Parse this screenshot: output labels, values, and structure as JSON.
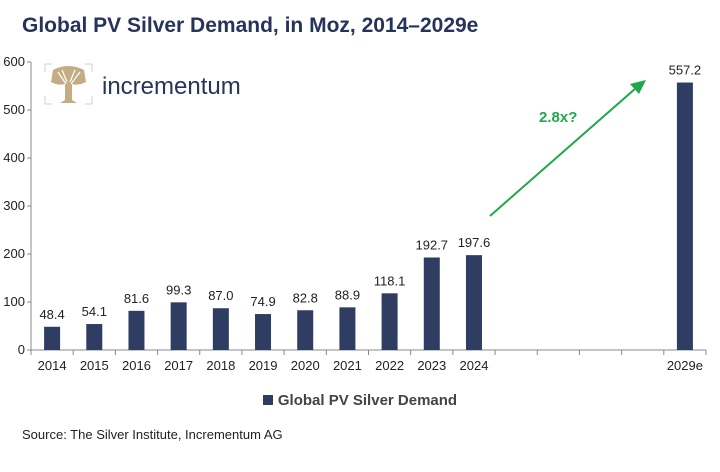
{
  "chart_data": {
    "type": "bar",
    "title": "Global PV Silver Demand, in Moz, 2014–2029e",
    "xlabel": "",
    "ylabel": "",
    "ylim": [
      0,
      600
    ],
    "yticks": [
      0,
      100,
      200,
      300,
      400,
      500,
      600
    ],
    "categories": [
      "2014",
      "2015",
      "2016",
      "2017",
      "2018",
      "2019",
      "2020",
      "2021",
      "2022",
      "2023",
      "2024",
      "2029e"
    ],
    "series": [
      {
        "name": "Global PV Silver Demand",
        "values": [
          48.4,
          54.1,
          81.6,
          99.3,
          87.0,
          74.9,
          82.8,
          88.9,
          118.1,
          192.7,
          197.6,
          557.2
        ],
        "labels": [
          "48.4",
          "54.1",
          "81.6",
          "99.3",
          "87.0",
          "74.9",
          "82.8",
          "88.9",
          "118.1",
          "192.7",
          "197.6",
          "557.2"
        ]
      }
    ],
    "grid": false,
    "legend_position": "bottom",
    "bar_color": "#2f3d63",
    "annotation": {
      "text": "2.8x?",
      "color": "#1fa84a"
    }
  },
  "logo": {
    "text": "incrementum",
    "color": "#26335a",
    "tree_color": "#c4ad84"
  },
  "source": "Source: The Silver Institute, Incrementum AG"
}
